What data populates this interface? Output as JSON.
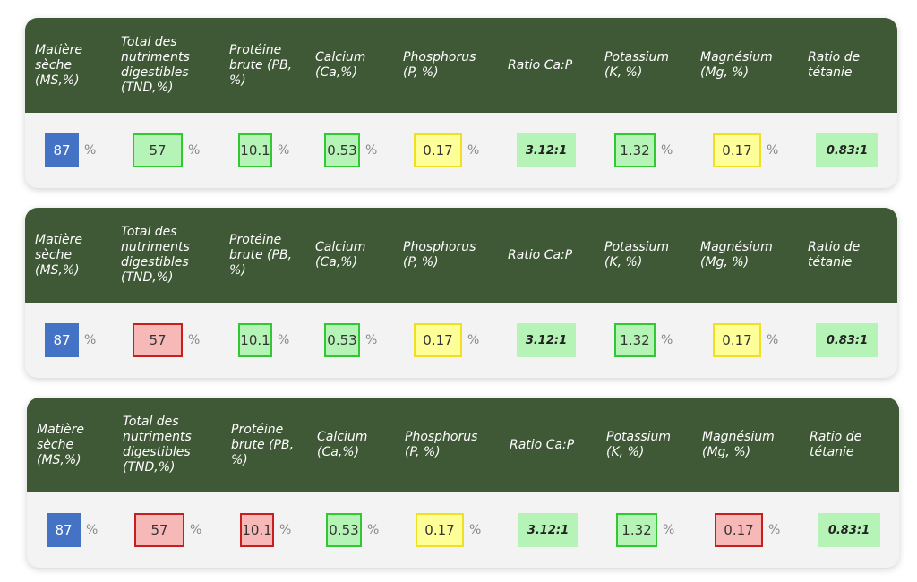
{
  "headers": [
    "Matière\nsèche\n(MS,%)",
    "Total des\nnutriments\ndigestibles\n(TND,%)",
    "Protéine\nbrute (PB,\n%)",
    "Calcium\n(Ca,%)",
    "Phosphorus\n(P, %)",
    "Ratio Ca:P",
    "Potassium\n(K, %)",
    "Magnésium\n(Mg, %)",
    "Ratio de\ntétanie"
  ],
  "unit": "%",
  "rows": [
    {
      "ms": {
        "value": "87",
        "status": "blue"
      },
      "tnd": {
        "value": "57",
        "status": "green"
      },
      "pb": {
        "value": "10.1",
        "status": "green"
      },
      "ca": {
        "value": "0.53",
        "status": "green"
      },
      "p": {
        "value": "0.17",
        "status": "yellow"
      },
      "ratio_cap": {
        "value": "3.12:1",
        "status": "ratio"
      },
      "k": {
        "value": "1.32",
        "status": "green"
      },
      "mg": {
        "value": "0.17",
        "status": "yellow"
      },
      "ratio_tetanie": {
        "value": "0.83:1",
        "status": "ratio"
      }
    },
    {
      "ms": {
        "value": "87",
        "status": "blue"
      },
      "tnd": {
        "value": "57",
        "status": "red"
      },
      "pb": {
        "value": "10.1",
        "status": "green"
      },
      "ca": {
        "value": "0.53",
        "status": "green"
      },
      "p": {
        "value": "0.17",
        "status": "yellow"
      },
      "ratio_cap": {
        "value": "3.12:1",
        "status": "ratio"
      },
      "k": {
        "value": "1.32",
        "status": "green"
      },
      "mg": {
        "value": "0.17",
        "status": "yellow"
      },
      "ratio_tetanie": {
        "value": "0.83:1",
        "status": "ratio"
      }
    },
    {
      "ms": {
        "value": "87",
        "status": "blue"
      },
      "tnd": {
        "value": "57",
        "status": "red"
      },
      "pb": {
        "value": "10.1",
        "status": "red"
      },
      "ca": {
        "value": "0.53",
        "status": "green"
      },
      "p": {
        "value": "0.17",
        "status": "yellow"
      },
      "ratio_cap": {
        "value": "3.12:1",
        "status": "ratio"
      },
      "k": {
        "value": "1.32",
        "status": "green"
      },
      "mg": {
        "value": "0.17",
        "status": "red"
      },
      "ratio_tetanie": {
        "value": "0.83:1",
        "status": "ratio"
      }
    }
  ],
  "colors": {
    "header_bg": "#3f5836",
    "blue": "#4472c4",
    "green_fill": "#b6f3b6",
    "green_border": "#32c832",
    "red_fill": "#f7b8b8",
    "red_border": "#c81e1e",
    "yellow_fill": "#ffff99",
    "yellow_border": "#f0e020"
  }
}
